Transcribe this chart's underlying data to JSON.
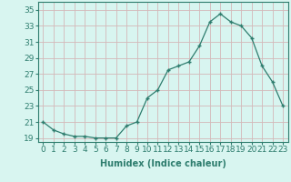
{
  "x": [
    0,
    1,
    2,
    3,
    4,
    5,
    6,
    7,
    8,
    9,
    10,
    11,
    12,
    13,
    14,
    15,
    16,
    17,
    18,
    19,
    20,
    21,
    22,
    23
  ],
  "y": [
    21,
    20,
    19.5,
    19.2,
    19.2,
    19,
    19,
    19,
    20.5,
    21,
    24,
    25,
    27.5,
    28,
    28.5,
    30.5,
    33.5,
    34.5,
    33.5,
    33,
    31.5,
    28,
    26,
    23
  ],
  "line_color": "#2e7d6e",
  "marker": "+",
  "bg_color": "#d8f5f0",
  "grid_color": "#c8e8e0",
  "xlabel": "Humidex (Indice chaleur)",
  "ylabel_ticks": [
    19,
    21,
    23,
    25,
    27,
    29,
    31,
    33,
    35
  ],
  "xticks": [
    0,
    1,
    2,
    3,
    4,
    5,
    6,
    7,
    8,
    9,
    10,
    11,
    12,
    13,
    14,
    15,
    16,
    17,
    18,
    19,
    20,
    21,
    22,
    23
  ],
  "ylim": [
    18.5,
    36
  ],
  "xlim": [
    -0.5,
    23.5
  ],
  "label_fontsize": 7,
  "tick_fontsize": 6.5
}
